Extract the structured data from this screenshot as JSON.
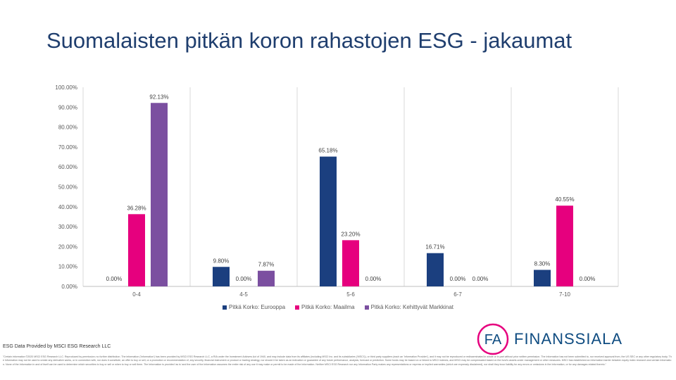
{
  "title": "Suomalaisten pitkän koron rahastojen ESG - jakaumat",
  "chart_data": {
    "type": "bar",
    "categories": [
      "0-4",
      "4-5",
      "5-6",
      "6-7",
      "7-10"
    ],
    "series": [
      {
        "name": "Pitkä Korko: Eurooppa",
        "color": "#1b3f7f",
        "values": [
          0.0,
          9.8,
          65.18,
          16.71,
          8.3
        ]
      },
      {
        "name": "Pitkä Korko: Maailma",
        "color": "#e6007e",
        "values": [
          36.28,
          0.0,
          23.2,
          0.0,
          40.55
        ]
      },
      {
        "name": "Pitkä Korko: Kehittyvät Markkinat",
        "color": "#7b4fa0",
        "values": [
          92.13,
          7.87,
          0.0,
          0.0,
          0.0
        ]
      }
    ],
    "data_labels": [
      [
        "0.00%",
        "9.80%",
        "65.18%",
        "16.71%",
        "8.30%"
      ],
      [
        "36.28%",
        "0.00%",
        "23.20%",
        "0.00%",
        "40.55%"
      ],
      [
        "92.13%",
        "7.87%",
        "0.00%",
        "0.00%",
        "0.00%"
      ]
    ],
    "yticks": [
      "0.00%",
      "10.00%",
      "20.00%",
      "30.00%",
      "40.00%",
      "50.00%",
      "60.00%",
      "70.00%",
      "80.00%",
      "90.00%",
      "100.00%"
    ],
    "ylim": [
      0,
      100
    ],
    "grid": "vertical-separators",
    "legend_position": "bottom"
  },
  "footer": {
    "source": "ESG Data Provided by MSCI ESG Research LLC",
    "disclaimer": "\"Certain information ©2020 MSCI ESG Research LLC. Reproduced by permission; no further distribution. The information ('Information') has been provided by MSCI ESG Research LLC, a RIA under the Investment Advisers Act of 1940, and may include data from its affiliates (including MSCI Inc. and its subsidiaries ('MSCI')), or third party suppliers (each an 'Information Provider'), and it may not be reproduced or redisseminated in whole or in part without prior written permission. The Information has not been submitted to, nor received approval from, the US SEC or any other regulatory body. The Information may not be used to create any derivative works, or in connection with, nor does it constitute, an offer to buy or sell, or a promotion or recommendation of, any security, financial instrument or product or trading strategy, nor should it be taken as an indication or guarantee of any future performance, analysis, forecast or prediction. Some funds may be based on or linked to MSCI indexes, and MSCI may be compensated based on the fund's assets under management or other measures. MSCI has established an information barrier between equity index research and certain Information. None of the Information in and of itself can be used to determine which securities to buy or sell or when to buy or sell them. The Information is provided 'as is' and the user of the Information assumes the entire risk of any use it may make or permit to be made of the Information. Neither MSCI ESG Research nor any Information Party makes any representations or express or implied warranties (which are expressly disclaimed), nor shall they incur liability for any errors or omissions in the Information, or for any damages related thereto.\""
  },
  "logo": {
    "mark": "FA",
    "text": "FINANSSIALA"
  }
}
